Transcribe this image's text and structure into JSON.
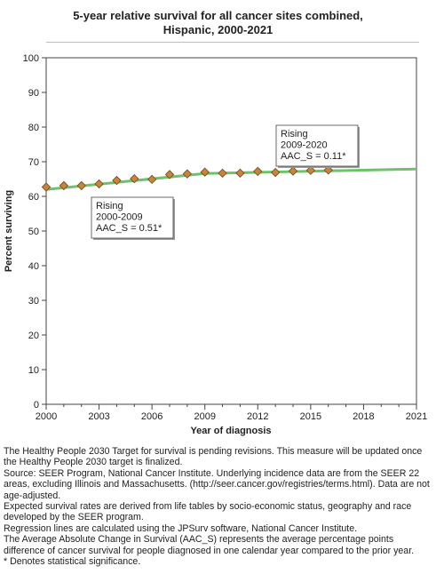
{
  "chart_data": {
    "type": "line",
    "title_line1": "5-year relative survival for all cancer sites combined,",
    "title_line2": "Hispanic,  2000-2021",
    "xlabel": "Year of diagnosis",
    "ylabel": "Percent surviving",
    "xlim": [
      2000,
      2021
    ],
    "ylim": [
      0,
      100
    ],
    "x_ticks": [
      "2000",
      "2003",
      "2006",
      "2009",
      "2012",
      "2015",
      "2018",
      "2021"
    ],
    "y_ticks": [
      "0",
      "10",
      "20",
      "30",
      "40",
      "50",
      "60",
      "70",
      "80",
      "90",
      "100"
    ],
    "grid": false,
    "colors": {
      "trend_line": "#6cc36c",
      "marker_fill": "#c8843a",
      "marker_stroke": "#6b4a1f"
    },
    "series": [
      {
        "type": "scatter",
        "x": [
          2000,
          2001,
          2002,
          2003,
          2004,
          2005,
          2006,
          2007,
          2008,
          2009,
          2010,
          2011,
          2012,
          2013,
          2014,
          2015,
          2016
        ],
        "y": [
          62.7,
          63.1,
          63.1,
          63.6,
          64.6,
          65.1,
          64.9,
          66.3,
          66.5,
          67.0,
          66.7,
          66.7,
          67.2,
          66.9,
          67.3,
          67.5,
          67.6
        ]
      },
      {
        "type": "line",
        "x": [
          2000,
          2009,
          2020,
          2021
        ],
        "y": [
          62.0,
          66.6,
          67.8,
          67.9
        ]
      }
    ],
    "annotations": [
      {
        "line1": "Rising",
        "line2": "2000-2009",
        "line3": "AAC_S =  0.51*"
      },
      {
        "line1": "Rising",
        "line2": "2009-2020",
        "line3": "AAC_S =  0.11*"
      }
    ]
  },
  "notes": [
    "The Healthy People 2030 Target for survival is pending revisions. This measure will be updated once the Healthy People 2030 target is finalized.",
    "Source: SEER Program, National Cancer Institute. Underlying incidence data are from the SEER 22 areas, excluding Illinois and Massachusetts. (http://seer.cancer.gov/registries/terms.html). Data are not age-adjusted.",
    "Expected survival rates are derived from life tables by socio-economic status, geography and race developed by the SEER program.",
    "Regression lines are calculated using the JPSurv software, National Cancer Institute.",
    "The Average Absolute Change in Survival (AAC_S) represents the average percentage points difference of cancer survival for people diagnosed in one calendar year compared to the prior year.",
    "* Denotes statistical significance."
  ]
}
